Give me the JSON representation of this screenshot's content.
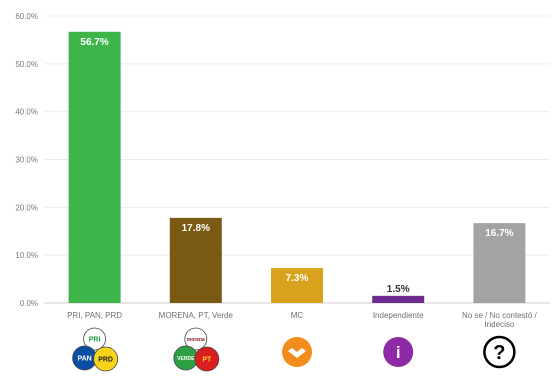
{
  "chart_data": {
    "type": "bar",
    "categories": [
      "PRI, PAN, PRD",
      "MORENA, PT, Verde",
      "MC",
      "Independiente",
      "No se / No contestó / Indeciso"
    ],
    "category_lines": [
      [
        "PRI, PAN, PRD"
      ],
      [
        "MORENA, PT, Verde"
      ],
      [
        "MC"
      ],
      [
        "Independiente"
      ],
      [
        "No se / No contestó /",
        "Indeciso"
      ]
    ],
    "values": [
      56.7,
      17.8,
      7.3,
      1.5,
      16.7
    ],
    "value_labels": [
      "56.7%",
      "17.8%",
      "7.3%",
      "1.5%",
      "16.7%"
    ],
    "colors": [
      "#3db54a",
      "#7a5a12",
      "#d9a21c",
      "#6f2c91",
      "#a3a3a3"
    ],
    "label_colors": [
      "#ffffff",
      "#ffffff",
      "#ffffff",
      "#333333",
      "#ffffff"
    ],
    "yticks": [
      "0.0%",
      "10.0%",
      "20.0%",
      "30.0%",
      "40.0%",
      "50.0%",
      "60.0%"
    ],
    "ylim": [
      0,
      60
    ],
    "grid": true,
    "icons": [
      {
        "name": "pri-pan-prd-logos-icon",
        "badges": [
          {
            "text": "PRI",
            "bg": "#ffffff",
            "fg": "#1d9b3a"
          },
          {
            "text": "PAN",
            "bg": "#0a4ea1",
            "fg": "#ffffff"
          },
          {
            "text": "PRD",
            "bg": "#f7d417",
            "fg": "#222222"
          }
        ]
      },
      {
        "name": "morena-pt-verde-logos-icon",
        "badges": [
          {
            "text": "morena",
            "bg": "#ffffff",
            "fg": "#8c1d2c"
          },
          {
            "text": "VERDE",
            "bg": "#2ea043",
            "fg": "#ffffff"
          },
          {
            "text": "PT",
            "bg": "#d81e1e",
            "fg": "#f7d417"
          }
        ]
      },
      {
        "name": "mc-logo-icon",
        "badges": [
          {
            "text": "",
            "bg": "#f28c1c",
            "fg": "#ffffff"
          }
        ]
      },
      {
        "name": "independiente-info-icon",
        "badges": [
          {
            "text": "i",
            "bg": "#8e2aa6",
            "fg": "#ffffff"
          }
        ]
      },
      {
        "name": "question-mark-icon",
        "badges": [
          {
            "text": "?",
            "bg": "#ffffff",
            "fg": "#000000"
          }
        ]
      }
    ]
  }
}
